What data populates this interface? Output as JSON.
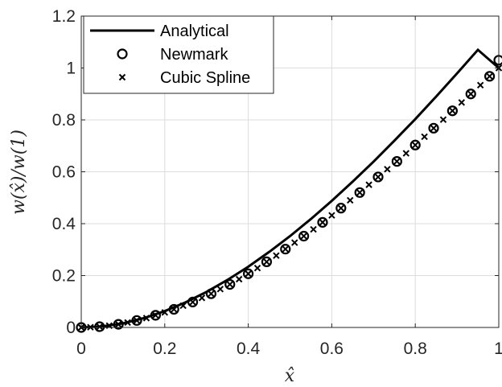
{
  "chart_data": {
    "type": "line",
    "xlabel": "x̂",
    "ylabel": "w(x̂)/w(1)",
    "xlim": [
      0,
      1
    ],
    "ylim": [
      0,
      1.2
    ],
    "x_ticks": [
      0,
      0.2,
      0.4,
      0.6,
      0.8,
      1
    ],
    "x_tick_labels": [
      "0",
      "0.2",
      "0.4",
      "0.6",
      "0.8",
      "1"
    ],
    "y_ticks": [
      0,
      0.2,
      0.4,
      0.6,
      0.8,
      1,
      1.2
    ],
    "y_tick_labels": [
      "0",
      "0.2",
      "0.4",
      "0.6",
      "0.8",
      "1",
      "1.2"
    ],
    "grid": true,
    "legend_position": "top-left",
    "series": [
      {
        "name": "Analytical",
        "marker": "line",
        "color": "#000000",
        "x": [
          0,
          0.05,
          0.1,
          0.15,
          0.2,
          0.25,
          0.3,
          0.35,
          0.4,
          0.45,
          0.5,
          0.55,
          0.6,
          0.65,
          0.7,
          0.75,
          0.8,
          0.85,
          0.9,
          0.95,
          1.0
        ],
        "values": [
          0,
          0.004,
          0.016,
          0.036,
          0.063,
          0.097,
          0.137,
          0.183,
          0.234,
          0.291,
          0.352,
          0.418,
          0.488,
          0.562,
          0.639,
          0.72,
          0.803,
          0.89,
          0.979,
          1.07,
          1.0
        ]
      },
      {
        "name": "Newmark",
        "marker": "circle",
        "color": "#000000",
        "x": [
          0,
          0.044,
          0.089,
          0.133,
          0.178,
          0.222,
          0.267,
          0.311,
          0.356,
          0.4,
          0.444,
          0.489,
          0.533,
          0.578,
          0.622,
          0.667,
          0.711,
          0.756,
          0.8,
          0.844,
          0.889,
          0.933,
          0.978,
          1.0
        ],
        "values": [
          0,
          0.003,
          0.012,
          0.027,
          0.047,
          0.07,
          0.098,
          0.13,
          0.166,
          0.207,
          0.253,
          0.302,
          0.352,
          0.405,
          0.46,
          0.52,
          0.58,
          0.64,
          0.703,
          0.768,
          0.835,
          0.9,
          0.968,
          1.03
        ]
      },
      {
        "name": "Cubic Spline",
        "marker": "x",
        "color": "#000000",
        "x": [
          0,
          0.022,
          0.044,
          0.067,
          0.089,
          0.111,
          0.133,
          0.156,
          0.178,
          0.2,
          0.222,
          0.244,
          0.267,
          0.289,
          0.311,
          0.333,
          0.356,
          0.378,
          0.4,
          0.422,
          0.444,
          0.467,
          0.489,
          0.511,
          0.533,
          0.556,
          0.578,
          0.6,
          0.622,
          0.644,
          0.667,
          0.689,
          0.711,
          0.733,
          0.756,
          0.778,
          0.8,
          0.822,
          0.844,
          0.867,
          0.889,
          0.911,
          0.933,
          0.956,
          0.978,
          1.0
        ],
        "values": [
          0,
          0.001,
          0.003,
          0.007,
          0.012,
          0.019,
          0.027,
          0.036,
          0.047,
          0.058,
          0.07,
          0.084,
          0.098,
          0.114,
          0.13,
          0.148,
          0.166,
          0.186,
          0.207,
          0.229,
          0.253,
          0.277,
          0.302,
          0.327,
          0.352,
          0.378,
          0.405,
          0.432,
          0.46,
          0.49,
          0.52,
          0.55,
          0.58,
          0.61,
          0.64,
          0.671,
          0.703,
          0.735,
          0.768,
          0.801,
          0.835,
          0.867,
          0.9,
          0.934,
          0.968,
          1.0
        ]
      }
    ]
  }
}
